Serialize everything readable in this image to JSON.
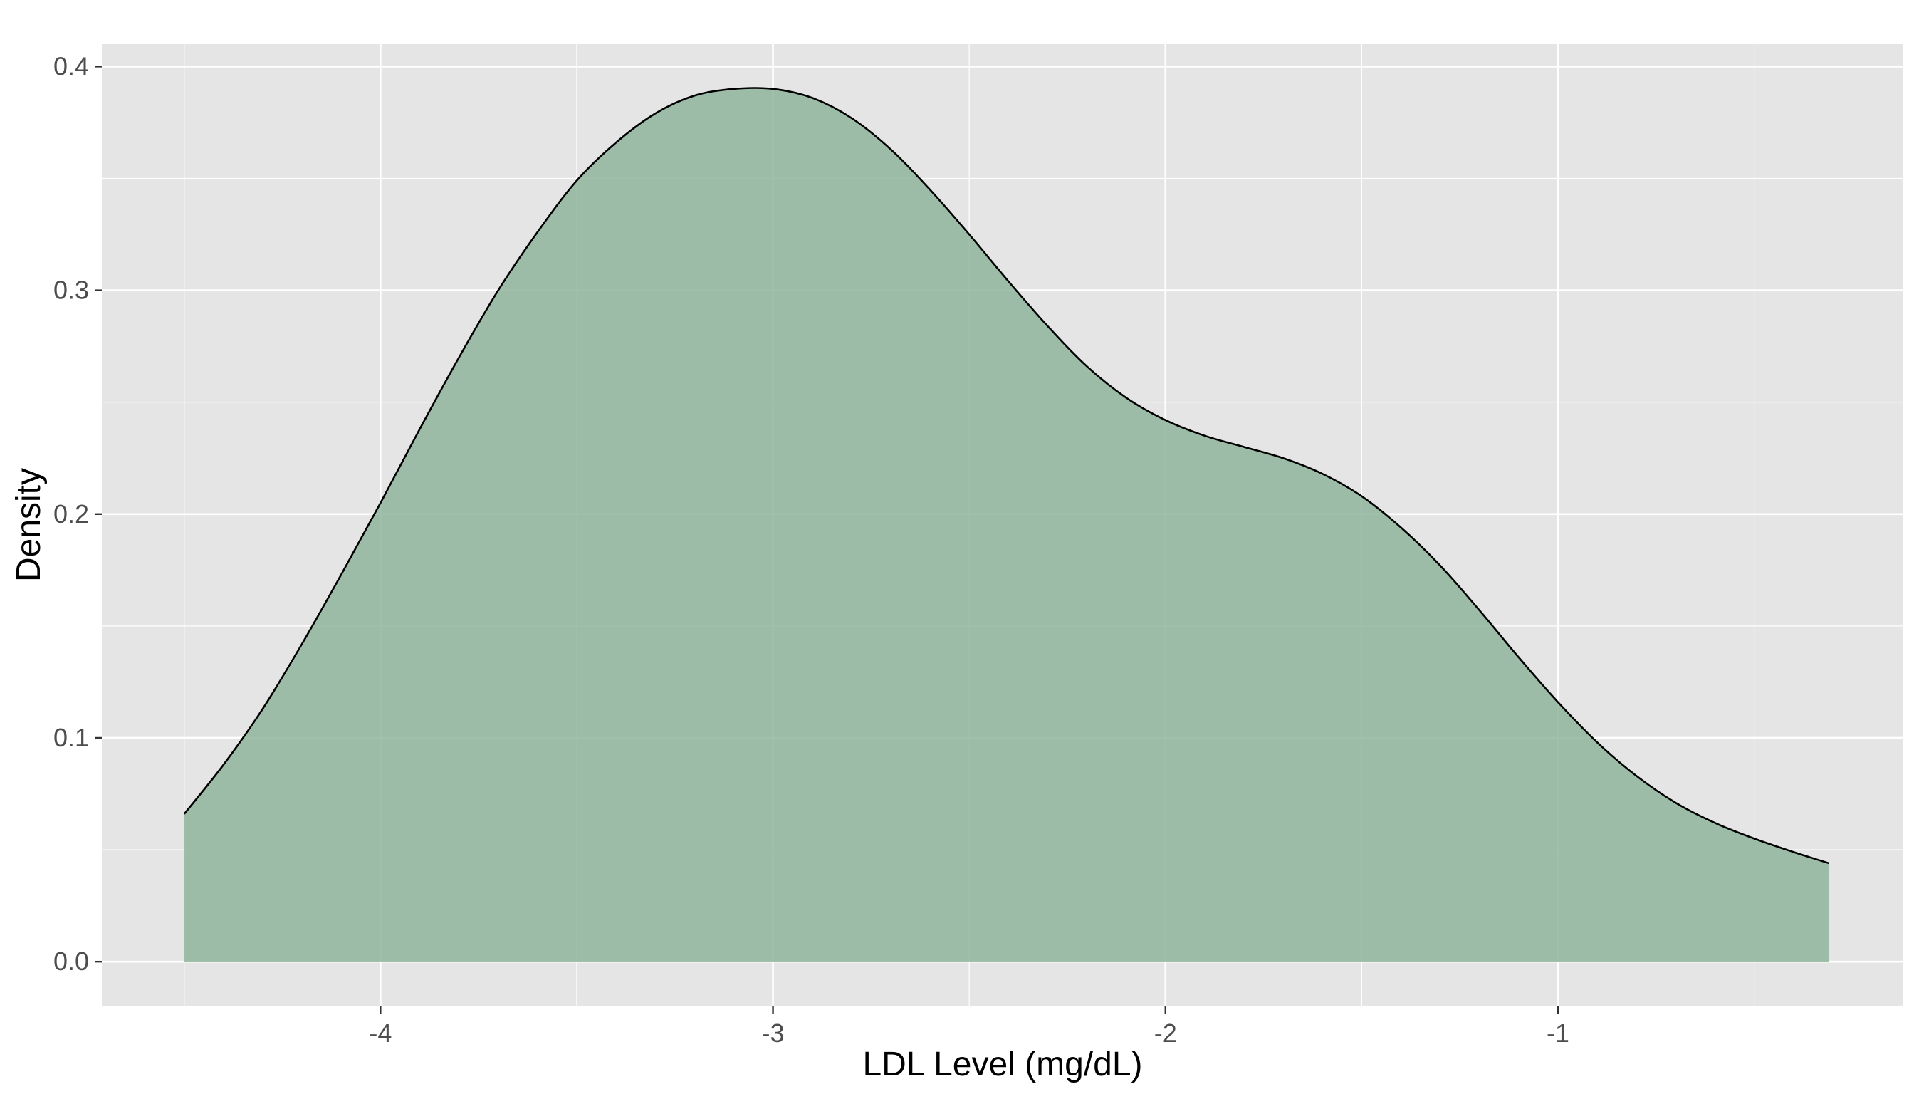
{
  "chart_data": {
    "type": "area",
    "title": "",
    "xlabel": "LDL Level (mg/dL)",
    "ylabel": "Density",
    "xlim": [
      -4.71,
      -0.12
    ],
    "ylim": [
      -0.02,
      0.41
    ],
    "x_ticks": [
      -4,
      -3,
      -2,
      -1
    ],
    "x_tick_labels": [
      "-4",
      "-3",
      "-2",
      "-1"
    ],
    "y_ticks": [
      0.0,
      0.1,
      0.2,
      0.3,
      0.4
    ],
    "y_tick_labels": [
      "0.0",
      "0.1",
      "0.2",
      "0.3",
      "0.4"
    ],
    "grid": true,
    "colors": {
      "panel_background": "#e5e5e5",
      "grid_line": "#ffffff",
      "fill": "#8fb59d",
      "line": "#000000"
    },
    "series": [
      {
        "x": [
          -4.5,
          -4.4,
          -4.3,
          -4.2,
          -4.1,
          -4.0,
          -3.9,
          -3.8,
          -3.7,
          -3.6,
          -3.5,
          -3.4,
          -3.3,
          -3.2,
          -3.1,
          -3.0,
          -2.9,
          -2.8,
          -2.7,
          -2.6,
          -2.5,
          -2.4,
          -2.3,
          -2.2,
          -2.1,
          -2.0,
          -1.9,
          -1.8,
          -1.7,
          -1.6,
          -1.5,
          -1.4,
          -1.3,
          -1.2,
          -1.1,
          -1.0,
          -0.9,
          -0.8,
          -0.7,
          -0.6,
          -0.5,
          -0.4,
          -0.31
        ],
        "y": [
          0.066,
          0.088,
          0.113,
          0.142,
          0.173,
          0.205,
          0.238,
          0.27,
          0.3,
          0.326,
          0.349,
          0.366,
          0.379,
          0.387,
          0.39,
          0.39,
          0.386,
          0.377,
          0.363,
          0.345,
          0.325,
          0.304,
          0.284,
          0.266,
          0.252,
          0.242,
          0.235,
          0.23,
          0.225,
          0.218,
          0.208,
          0.194,
          0.177,
          0.157,
          0.136,
          0.116,
          0.098,
          0.083,
          0.071,
          0.062,
          0.055,
          0.049,
          0.044
        ]
      }
    ]
  }
}
